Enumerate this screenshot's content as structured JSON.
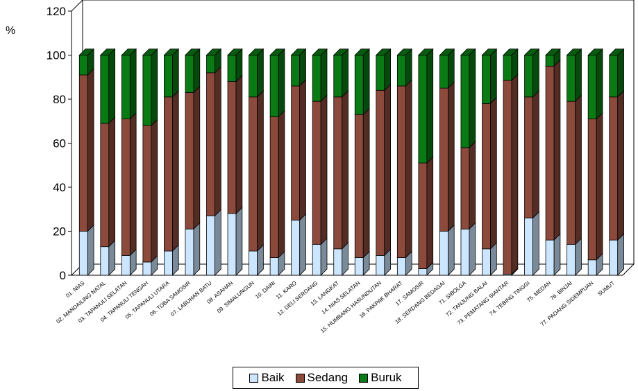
{
  "chart_data": {
    "type": "bar",
    "stacked": true,
    "ylabel": "%",
    "ylim": [
      0,
      120
    ],
    "yticks": [
      0,
      20,
      40,
      60,
      80,
      100,
      120
    ],
    "categories": [
      "01. NIAS",
      "02. MANDAILING NATAL",
      "03. TAPANULI SELATAN",
      "04. TAPANULI TENGAH",
      "05. TAPANULI UTARA",
      "06. TOBA SAMOSIR",
      "07. LABUHAN BATU",
      "08. ASAHAN",
      "09. SIMALUNGUN",
      "10. DAIRI",
      "11. KARO",
      "12. DELI SERDANG",
      "13. LANGKAT",
      "14. NIAS SELATAN",
      "15. HUMBANG HASUNDUTAN",
      "16. PAKPAK BHARAT",
      "17. SAMOSIR",
      "18. SERDANG BEDAGAI",
      "71. SIBOLGA",
      "72. TANJUNG BALAI",
      "73. PEMATANG SIANTAR",
      "74. TEBING TINGGI",
      "75. MEDAN",
      "76. BINJAI",
      "77. PADANG SIDEMPUAN",
      "SUMUT"
    ],
    "series": [
      {
        "name": "Baik",
        "color": "#cce6ff",
        "values": [
          20,
          13,
          9,
          6,
          11,
          21,
          27,
          28,
          11,
          8,
          25,
          14,
          12,
          8,
          9,
          8,
          3,
          20,
          21,
          12,
          0.5,
          26,
          16,
          14,
          7,
          16
        ]
      },
      {
        "name": "Sedang",
        "color": "#8b4a3c",
        "values": [
          71,
          56,
          62,
          62,
          70,
          62,
          65,
          60,
          70,
          64,
          61,
          65,
          69,
          65,
          75,
          78,
          48,
          65,
          37,
          66,
          88,
          55,
          79,
          65,
          64,
          65
        ]
      },
      {
        "name": "Buruk",
        "color": "#0a7a14",
        "values": [
          9,
          31,
          29,
          32,
          19,
          17,
          8,
          12,
          19,
          28,
          14,
          21,
          19,
          27,
          16,
          14,
          49,
          15,
          42,
          22,
          11.5,
          19,
          5,
          21,
          29,
          19
        ]
      }
    ],
    "legend_position": "bottom",
    "grid": false
  }
}
